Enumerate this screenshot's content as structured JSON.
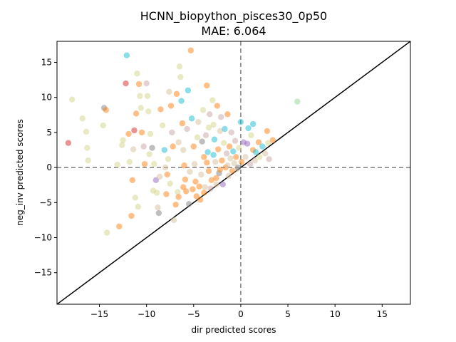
{
  "chart_data": {
    "type": "scatter",
    "title": "HCNN_biopython_pisces30_0p50",
    "subtitle": "MAE: 6.064",
    "xlabel": "dir predicted scores",
    "ylabel": "neg_inv predicted scores",
    "xlim": [
      -19.5,
      18
    ],
    "ylim": [
      -19.5,
      18
    ],
    "xticks": [
      -15,
      -10,
      -5,
      0,
      5,
      10,
      15
    ],
    "yticks": [
      -15,
      -10,
      -5,
      0,
      5,
      10,
      15
    ],
    "xtick_labels": [
      "−15",
      "−10",
      "−5",
      "0",
      "5",
      "10",
      "15"
    ],
    "ytick_labels": [
      "−15",
      "−10",
      "−5",
      "0",
      "5",
      "10",
      "15"
    ],
    "grid": false,
    "reference_lines": {
      "x_zero_dashed": true,
      "y_zero_dashed": true,
      "identity_line": true
    },
    "colors": {
      "orange": "#ff7f0e",
      "tan": "#d6bf9b",
      "olive": "#d4d48a",
      "cyan": "#17becf",
      "purple": "#9467bd",
      "gray": "#7f7f7f",
      "red": "#d62728",
      "green": "#8fd48f",
      "pink": "#c9a5a5"
    },
    "points": [
      {
        "x": -18.3,
        "y": 3.5,
        "c": "red"
      },
      {
        "x": -17.9,
        "y": 9.7,
        "c": "olive"
      },
      {
        "x": -16.8,
        "y": 7.0,
        "c": "olive"
      },
      {
        "x": -16.4,
        "y": 5.1,
        "c": "olive"
      },
      {
        "x": -16.3,
        "y": 2.8,
        "c": "olive"
      },
      {
        "x": -16.2,
        "y": 1.0,
        "c": "olive"
      },
      {
        "x": -14.6,
        "y": 6.0,
        "c": "olive"
      },
      {
        "x": -14.5,
        "y": 8.5,
        "c": "gray"
      },
      {
        "x": -14.3,
        "y": 8.2,
        "c": "orange"
      },
      {
        "x": -14.2,
        "y": -9.3,
        "c": "olive"
      },
      {
        "x": -12.9,
        "y": -8.4,
        "c": "orange"
      },
      {
        "x": -12.5,
        "y": 3.9,
        "c": "olive"
      },
      {
        "x": -12.2,
        "y": 12.0,
        "c": "red"
      },
      {
        "x": -12.1,
        "y": 16.0,
        "c": "cyan"
      },
      {
        "x": -11.9,
        "y": 4.8,
        "c": "orange"
      },
      {
        "x": -11.8,
        "y": 0.8,
        "c": "olive"
      },
      {
        "x": -11.6,
        "y": -6.9,
        "c": "orange"
      },
      {
        "x": -11.5,
        "y": -1.8,
        "c": "orange"
      },
      {
        "x": -11.4,
        "y": 2.6,
        "c": "tan"
      },
      {
        "x": -11.3,
        "y": 5.3,
        "c": "red"
      },
      {
        "x": -11.1,
        "y": 7.7,
        "c": "orange"
      },
      {
        "x": -11.0,
        "y": 13.4,
        "c": "olive"
      },
      {
        "x": -10.8,
        "y": 11.9,
        "c": "orange"
      },
      {
        "x": -10.7,
        "y": 10.2,
        "c": "olive"
      },
      {
        "x": -10.6,
        "y": 8.5,
        "c": "olive"
      },
      {
        "x": -10.5,
        "y": 5.0,
        "c": "orange"
      },
      {
        "x": -10.3,
        "y": 3.0,
        "c": "pink"
      },
      {
        "x": -10.2,
        "y": 0.5,
        "c": "orange"
      },
      {
        "x": -10.0,
        "y": 12.0,
        "c": "pink"
      },
      {
        "x": -9.9,
        "y": 10.2,
        "c": "olive"
      },
      {
        "x": -9.8,
        "y": 8.0,
        "c": "olive"
      },
      {
        "x": -9.6,
        "y": 4.8,
        "c": "olive"
      },
      {
        "x": -9.4,
        "y": 2.8,
        "c": "gray"
      },
      {
        "x": -9.2,
        "y": 0.5,
        "c": "olive"
      },
      {
        "x": -9.0,
        "y": -1.8,
        "c": "purple"
      },
      {
        "x": -8.9,
        "y": -3.6,
        "c": "olive"
      },
      {
        "x": -8.8,
        "y": -5.7,
        "c": "tan"
      },
      {
        "x": -8.7,
        "y": -6.5,
        "c": "gray"
      },
      {
        "x": -8.5,
        "y": 8.3,
        "c": "orange"
      },
      {
        "x": -8.3,
        "y": 6.0,
        "c": "olive"
      },
      {
        "x": -8.1,
        "y": 2.5,
        "c": "cyan"
      },
      {
        "x": -8.0,
        "y": 0.0,
        "c": "tan"
      },
      {
        "x": -7.9,
        "y": -3.8,
        "c": "orange"
      },
      {
        "x": -7.8,
        "y": -1.0,
        "c": "orange"
      },
      {
        "x": -7.6,
        "y": 10.8,
        "c": "tan"
      },
      {
        "x": -7.4,
        "y": 8.8,
        "c": "orange"
      },
      {
        "x": -7.3,
        "y": 5.0,
        "c": "pink"
      },
      {
        "x": -7.2,
        "y": 3.0,
        "c": "orange"
      },
      {
        "x": -7.1,
        "y": -7.5,
        "c": "tan"
      },
      {
        "x": -6.9,
        "y": -5.3,
        "c": "orange"
      },
      {
        "x": -6.8,
        "y": 10.5,
        "c": "orange"
      },
      {
        "x": -6.7,
        "y": -3.5,
        "c": "olive"
      },
      {
        "x": -6.5,
        "y": 14.4,
        "c": "olive"
      },
      {
        "x": -6.4,
        "y": 12.9,
        "c": "olive"
      },
      {
        "x": -6.3,
        "y": 9.5,
        "c": "cyan"
      },
      {
        "x": -6.2,
        "y": 6.3,
        "c": "orange"
      },
      {
        "x": -6.1,
        "y": 2.5,
        "c": "tan"
      },
      {
        "x": -6.0,
        "y": 0.3,
        "c": "orange"
      },
      {
        "x": -5.9,
        "y": -1.7,
        "c": "orange"
      },
      {
        "x": -5.8,
        "y": -3.4,
        "c": "orange"
      },
      {
        "x": -5.7,
        "y": 5.5,
        "c": "pink"
      },
      {
        "x": -5.6,
        "y": 11.0,
        "c": "cyan"
      },
      {
        "x": -5.5,
        "y": -5.2,
        "c": "gray"
      },
      {
        "x": -5.3,
        "y": 16.7,
        "c": "orange"
      },
      {
        "x": -5.2,
        "y": 7.0,
        "c": "cyan"
      },
      {
        "x": -5.0,
        "y": 3.0,
        "c": "orange"
      },
      {
        "x": -4.9,
        "y": 0.5,
        "c": "tan"
      },
      {
        "x": -4.8,
        "y": -2.0,
        "c": "orange"
      },
      {
        "x": -4.6,
        "y": 4.3,
        "c": "olive"
      },
      {
        "x": -4.5,
        "y": 6.5,
        "c": "tan"
      },
      {
        "x": -4.3,
        "y": -4.6,
        "c": "orange"
      },
      {
        "x": -4.2,
        "y": -1.0,
        "c": "tan"
      },
      {
        "x": -4.0,
        "y": 8.2,
        "c": "olive"
      },
      {
        "x": -3.9,
        "y": 1.5,
        "c": "orange"
      },
      {
        "x": -3.8,
        "y": -2.8,
        "c": "tan"
      },
      {
        "x": -3.7,
        "y": 4.6,
        "c": "pink"
      },
      {
        "x": -3.6,
        "y": 11.7,
        "c": "orange"
      },
      {
        "x": -3.5,
        "y": 2.2,
        "c": "cyan"
      },
      {
        "x": -3.4,
        "y": -0.5,
        "c": "orange"
      },
      {
        "x": -3.3,
        "y": 7.6,
        "c": "pink"
      },
      {
        "x": -3.2,
        "y": -3.0,
        "c": "pink"
      },
      {
        "x": -3.0,
        "y": 9.6,
        "c": "olive"
      },
      {
        "x": -2.9,
        "y": 6.1,
        "c": "olive"
      },
      {
        "x": -2.8,
        "y": 4.0,
        "c": "cyan"
      },
      {
        "x": -2.7,
        "y": 0.8,
        "c": "tan"
      },
      {
        "x": -2.6,
        "y": -1.5,
        "c": "orange"
      },
      {
        "x": -2.5,
        "y": 8.8,
        "c": "orange"
      },
      {
        "x": -2.4,
        "y": 2.6,
        "c": "orange"
      },
      {
        "x": -2.3,
        "y": -0.8,
        "c": "gray"
      },
      {
        "x": -2.2,
        "y": 5.2,
        "c": "tan"
      },
      {
        "x": -2.1,
        "y": 7.2,
        "c": "pink"
      },
      {
        "x": -2.0,
        "y": 1.0,
        "c": "orange"
      },
      {
        "x": -1.9,
        "y": -2.4,
        "c": "purple"
      },
      {
        "x": -1.8,
        "y": 3.5,
        "c": "olive"
      },
      {
        "x": -1.7,
        "y": 5.5,
        "c": "cyan"
      },
      {
        "x": -1.6,
        "y": 0.0,
        "c": "orange"
      },
      {
        "x": -1.5,
        "y": 2.0,
        "c": "pink"
      },
      {
        "x": -1.4,
        "y": 7.6,
        "c": "orange"
      },
      {
        "x": -1.3,
        "y": -1.2,
        "c": "tan"
      },
      {
        "x": -1.2,
        "y": 3.0,
        "c": "orange"
      },
      {
        "x": -1.1,
        "y": 1.3,
        "c": "tan"
      },
      {
        "x": -1.0,
        "y": 5.0,
        "c": "pink"
      },
      {
        "x": -0.9,
        "y": -0.5,
        "c": "orange"
      },
      {
        "x": -0.8,
        "y": 2.3,
        "c": "cyan"
      },
      {
        "x": -0.7,
        "y": 0.6,
        "c": "tan"
      },
      {
        "x": -0.6,
        "y": 3.8,
        "c": "pink"
      },
      {
        "x": -0.5,
        "y": 1.5,
        "c": "orange"
      },
      {
        "x": -0.4,
        "y": -0.2,
        "c": "tan"
      },
      {
        "x": -0.2,
        "y": 2.8,
        "c": "olive"
      },
      {
        "x": 0.0,
        "y": 6.5,
        "c": "cyan"
      },
      {
        "x": 0.1,
        "y": 0.8,
        "c": "orange"
      },
      {
        "x": 0.3,
        "y": 3.6,
        "c": "purple"
      },
      {
        "x": 0.5,
        "y": 1.5,
        "c": "tan"
      },
      {
        "x": 0.7,
        "y": 3.4,
        "c": "purple"
      },
      {
        "x": 0.8,
        "y": 5.6,
        "c": "cyan"
      },
      {
        "x": 1.0,
        "y": 0.5,
        "c": "pink"
      },
      {
        "x": 1.1,
        "y": 4.6,
        "c": "olive"
      },
      {
        "x": 1.3,
        "y": 2.5,
        "c": "orange"
      },
      {
        "x": 1.3,
        "y": 6.2,
        "c": "cyan"
      },
      {
        "x": 1.5,
        "y": 1.0,
        "c": "tan"
      },
      {
        "x": 1.6,
        "y": 2.2,
        "c": "cyan"
      },
      {
        "x": 1.9,
        "y": 3.6,
        "c": "orange"
      },
      {
        "x": 2.0,
        "y": 1.5,
        "c": "olive"
      },
      {
        "x": 2.3,
        "y": 3.0,
        "c": "cyan"
      },
      {
        "x": 2.6,
        "y": 2.0,
        "c": "tan"
      },
      {
        "x": 2.8,
        "y": 5.2,
        "c": "orange"
      },
      {
        "x": 2.9,
        "y": 3.5,
        "c": "olive"
      },
      {
        "x": 3.0,
        "y": 1.2,
        "c": "pink"
      },
      {
        "x": 3.4,
        "y": 3.9,
        "c": "orange"
      },
      {
        "x": 6.0,
        "y": 9.4,
        "c": "green"
      },
      {
        "x": -6.1,
        "y": -2.8,
        "c": "orange"
      },
      {
        "x": -5.4,
        "y": -0.6,
        "c": "tan"
      },
      {
        "x": -4.7,
        "y": -4.1,
        "c": "orange"
      },
      {
        "x": -3.9,
        "y": -3.6,
        "c": "orange"
      },
      {
        "x": -3.1,
        "y": -1.8,
        "c": "orange"
      },
      {
        "x": -2.6,
        "y": -2.4,
        "c": "tan"
      },
      {
        "x": -4.4,
        "y": -2.7,
        "c": "orange"
      },
      {
        "x": -5.1,
        "y": -3.1,
        "c": "orange"
      },
      {
        "x": -6.6,
        "y": -4.2,
        "c": "orange"
      },
      {
        "x": -7.5,
        "y": -2.3,
        "c": "olive"
      },
      {
        "x": -8.6,
        "y": -1.3,
        "c": "tan"
      },
      {
        "x": -9.3,
        "y": -3.3,
        "c": "olive"
      },
      {
        "x": -11.2,
        "y": -4.3,
        "c": "olive"
      },
      {
        "x": -10.9,
        "y": -5.6,
        "c": "olive"
      },
      {
        "x": -13.1,
        "y": 0.4,
        "c": "olive"
      },
      {
        "x": -12.6,
        "y": 3.2,
        "c": "olive"
      },
      {
        "x": -9.7,
        "y": 1.9,
        "c": "olive"
      },
      {
        "x": -7.7,
        "y": 1.2,
        "c": "olive"
      },
      {
        "x": -6.6,
        "y": 3.6,
        "c": "tan"
      },
      {
        "x": -3.6,
        "y": 0.7,
        "c": "orange"
      },
      {
        "x": -2.2,
        "y": -0.3,
        "c": "orange"
      },
      {
        "x": -1.4,
        "y": 0.3,
        "c": "tan"
      },
      {
        "x": -0.3,
        "y": 0.0,
        "c": "gray"
      },
      {
        "x": -4.1,
        "y": 3.7,
        "c": "gray"
      },
      {
        "x": -3.4,
        "y": 5.7,
        "c": "olive"
      },
      {
        "x": -2.9,
        "y": 1.8,
        "c": "cyan"
      }
    ]
  }
}
